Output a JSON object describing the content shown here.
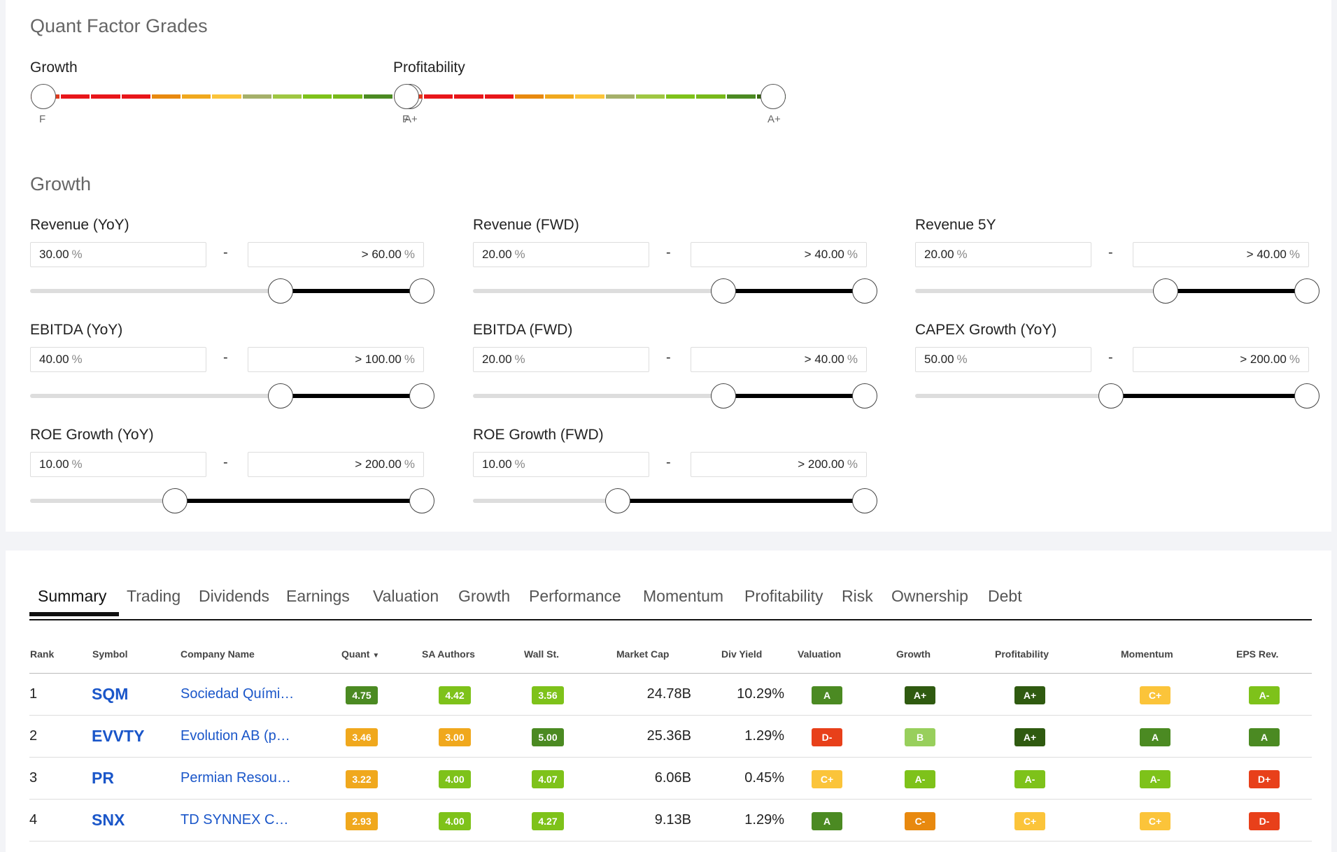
{
  "quant_factor_grades": {
    "title": "Quant Factor Grades",
    "growth": {
      "label": "Growth",
      "min": "F",
      "max": "A+"
    },
    "profitability": {
      "label": "Profitability",
      "min": "F",
      "max": "A+"
    },
    "scale_colors": [
      "#e03a1e",
      "#e8161a",
      "#e8161a",
      "#e8161a",
      "#e8890f",
      "#f0a81d",
      "#fbc43a",
      "#a5b06a",
      "#9fc743",
      "#7ec21a",
      "#78b91a",
      "#4b8a22",
      "#3a6a12"
    ]
  },
  "growth_filters": {
    "title": "Growth",
    "items": [
      {
        "label": "Revenue (YoY)",
        "min": "30.00",
        "max": "> 60.00",
        "unit": "%",
        "lo": 0.64,
        "hi": 1.0
      },
      {
        "label": "Revenue (FWD)",
        "min": "20.00",
        "max": "> 40.00",
        "unit": "%",
        "lo": 0.64,
        "hi": 1.0
      },
      {
        "label": "Revenue 5Y",
        "min": "20.00",
        "max": "> 40.00",
        "unit": "%",
        "lo": 0.64,
        "hi": 1.0
      },
      {
        "label": "EBITDA (YoY)",
        "min": "40.00",
        "max": "> 100.00",
        "unit": "%",
        "lo": 0.64,
        "hi": 1.0
      },
      {
        "label": "EBITDA (FWD)",
        "min": "20.00",
        "max": "> 40.00",
        "unit": "%",
        "lo": 0.64,
        "hi": 1.0
      },
      {
        "label": "CAPEX Growth (YoY)",
        "min": "50.00",
        "max": "> 200.00",
        "unit": "%",
        "lo": 0.5,
        "hi": 1.0
      },
      {
        "label": "ROE Growth (YoY)",
        "min": "10.00",
        "max": "> 200.00",
        "unit": "%",
        "lo": 0.37,
        "hi": 1.0
      },
      {
        "label": "ROE Growth (FWD)",
        "min": "10.00",
        "max": "> 200.00",
        "unit": "%",
        "lo": 0.37,
        "hi": 1.0
      }
    ]
  },
  "tabs": [
    "Summary",
    "Trading",
    "Dividends",
    "Earnings",
    "Valuation",
    "Growth",
    "Performance",
    "Momentum",
    "Profitability",
    "Risk",
    "Ownership",
    "Debt"
  ],
  "table": {
    "headers": {
      "rank": "Rank",
      "symbol": "Symbol",
      "company": "Company Name",
      "quant": "Quant",
      "sa": "SA Authors",
      "wall": "Wall St.",
      "mcap": "Market Cap",
      "div": "Div Yield",
      "valuation": "Valuation",
      "growth": "Growth",
      "profitability": "Profitability",
      "momentum": "Momentum",
      "eps": "EPS Rev."
    },
    "rows": [
      {
        "rank": "1",
        "symbol": "SQM",
        "company": "Sociedad Quími…",
        "quant": "4.75",
        "sa": "4.42",
        "wall": "3.56",
        "mcap": "24.78B",
        "div": "10.29%",
        "valuation": "A",
        "growth": "A+",
        "profitability": "A+",
        "momentum": "C+",
        "eps": "A-"
      },
      {
        "rank": "2",
        "symbol": "EVVTY",
        "company": "Evolution AB (p…",
        "quant": "3.46",
        "sa": "3.00",
        "wall": "5.00",
        "mcap": "25.36B",
        "div": "1.29%",
        "valuation": "D-",
        "growth": "B",
        "profitability": "A+",
        "momentum": "A",
        "eps": "A"
      },
      {
        "rank": "3",
        "symbol": "PR",
        "company": "Permian Resou…",
        "quant": "3.22",
        "sa": "4.00",
        "wall": "4.07",
        "mcap": "6.06B",
        "div": "0.45%",
        "valuation": "C+",
        "growth": "A-",
        "profitability": "A-",
        "momentum": "A-",
        "eps": "D+"
      },
      {
        "rank": "4",
        "symbol": "SNX",
        "company": "TD SYNNEX C…",
        "quant": "2.93",
        "sa": "4.00",
        "wall": "4.27",
        "mcap": "9.13B",
        "div": "1.29%",
        "valuation": "A",
        "growth": "C-",
        "profitability": "C+",
        "momentum": "C+",
        "eps": "D-"
      }
    ]
  },
  "colors": {
    "A+": "#2f5a10",
    "A": "#4b8a22",
    "A-": "#7ec21a",
    "B": "#98cf5c",
    "C+": "#fbc43a",
    "C-": "#e8890f",
    "D+": "#e8401a",
    "D-": "#e8401a",
    "score_high": "#4b8a22",
    "score_mid": "#7ec21a",
    "score_low": "#f0a81d"
  }
}
